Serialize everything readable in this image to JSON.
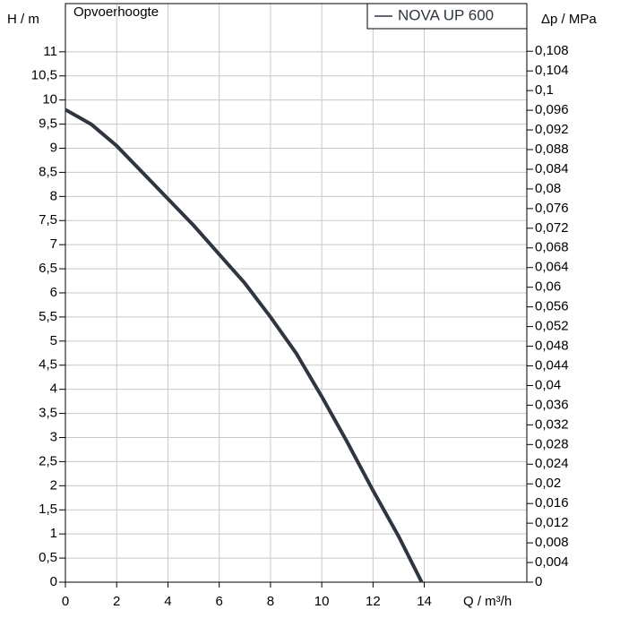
{
  "chart_data": {
    "type": "line",
    "title": "Opvoerhoogte",
    "xlabel": "Q / m³/h",
    "ylabel": "H / m",
    "y2label": "Δp / MPa",
    "x": [
      0,
      1,
      2,
      3,
      4,
      5,
      6,
      7,
      8,
      9,
      10,
      11,
      12,
      13,
      13.9
    ],
    "series": [
      {
        "name": "NOVA UP 600",
        "color": "#2f3640",
        "values": [
          9.8,
          9.5,
          9.05,
          8.5,
          7.95,
          7.4,
          6.8,
          6.2,
          5.5,
          4.75,
          3.85,
          2.9,
          1.9,
          0.95,
          0
        ]
      }
    ],
    "xlim": [
      0,
      18
    ],
    "xticks": [
      0,
      2,
      4,
      6,
      8,
      10,
      12,
      14
    ],
    "ylim": [
      0,
      12
    ],
    "yticks": [
      0,
      {
        "value": 0.5,
        "label": "0,5"
      },
      1,
      {
        "value": 1.5,
        "label": "1,5"
      },
      2,
      {
        "value": 2.5,
        "label": "2,5"
      },
      3,
      {
        "value": 3.5,
        "label": "3,5"
      },
      4,
      {
        "value": 4.5,
        "label": "4,5"
      },
      5,
      {
        "value": 5.5,
        "label": "5,5"
      },
      6,
      {
        "value": 6.5,
        "label": "6,5"
      },
      7,
      {
        "value": 7.5,
        "label": "7,5"
      },
      8,
      {
        "value": 8.5,
        "label": "8,5"
      },
      9,
      {
        "value": 9.5,
        "label": "9,5"
      },
      10,
      {
        "value": 10.5,
        "label": "10,5"
      },
      11
    ],
    "y2lim": [
      0,
      0.1177
    ],
    "y2ticks": [
      0,
      {
        "value": 0.004,
        "label": "0,004"
      },
      {
        "value": 0.008,
        "label": "0,008"
      },
      {
        "value": 0.012,
        "label": "0,012"
      },
      {
        "value": 0.016,
        "label": "0,016"
      },
      {
        "value": 0.02,
        "label": "0,02"
      },
      {
        "value": 0.024,
        "label": "0,024"
      },
      {
        "value": 0.028,
        "label": "0,028"
      },
      {
        "value": 0.032,
        "label": "0,032"
      },
      {
        "value": 0.036,
        "label": "0,036"
      },
      {
        "value": 0.04,
        "label": "0,04"
      },
      {
        "value": 0.044,
        "label": "0,044"
      },
      {
        "value": 0.048,
        "label": "0,048"
      },
      {
        "value": 0.052,
        "label": "0,052"
      },
      {
        "value": 0.056,
        "label": "0,056"
      },
      {
        "value": 0.06,
        "label": "0,06"
      },
      {
        "value": 0.064,
        "label": "0,064"
      },
      {
        "value": 0.068,
        "label": "0,068"
      },
      {
        "value": 0.072,
        "label": "0,072"
      },
      {
        "value": 0.076,
        "label": "0,076"
      },
      {
        "value": 0.08,
        "label": "0,08"
      },
      {
        "value": 0.084,
        "label": "0,084"
      },
      {
        "value": 0.088,
        "label": "0,088"
      },
      {
        "value": 0.092,
        "label": "0,092"
      },
      {
        "value": 0.096,
        "label": "0,096"
      },
      {
        "value": 0.1,
        "label": "0,1"
      },
      {
        "value": 0.104,
        "label": "0,104"
      },
      {
        "value": 0.108,
        "label": "0,108"
      }
    ],
    "grid": true
  }
}
